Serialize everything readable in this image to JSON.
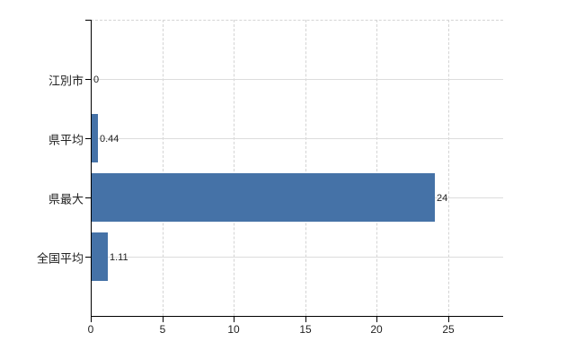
{
  "chart_data": {
    "type": "bar",
    "orientation": "horizontal",
    "title": "",
    "xlabel": "",
    "ylabel": "",
    "categories": [
      "江別市",
      "県平均",
      "県最大",
      "全国平均"
    ],
    "values": [
      0,
      0.44,
      24,
      1.11
    ],
    "value_labels": [
      "0",
      "0.44",
      "24",
      "1.11"
    ],
    "xticks": [
      0,
      5,
      10,
      15,
      20,
      25
    ],
    "xtick_labels": [
      "0",
      "5",
      "10",
      "15",
      "20",
      "25"
    ],
    "xlim": [
      0,
      28.84
    ],
    "grid": true,
    "legend": false,
    "colors": {
      "bar": "#4572a7",
      "axis": "#000000",
      "vertical_gridline": "#d4d4d4",
      "horizontal_gridline": "#dcdcdc",
      "plot_border_top": "#d4d4d4",
      "text": "#222222",
      "background": "#ffffff"
    }
  }
}
